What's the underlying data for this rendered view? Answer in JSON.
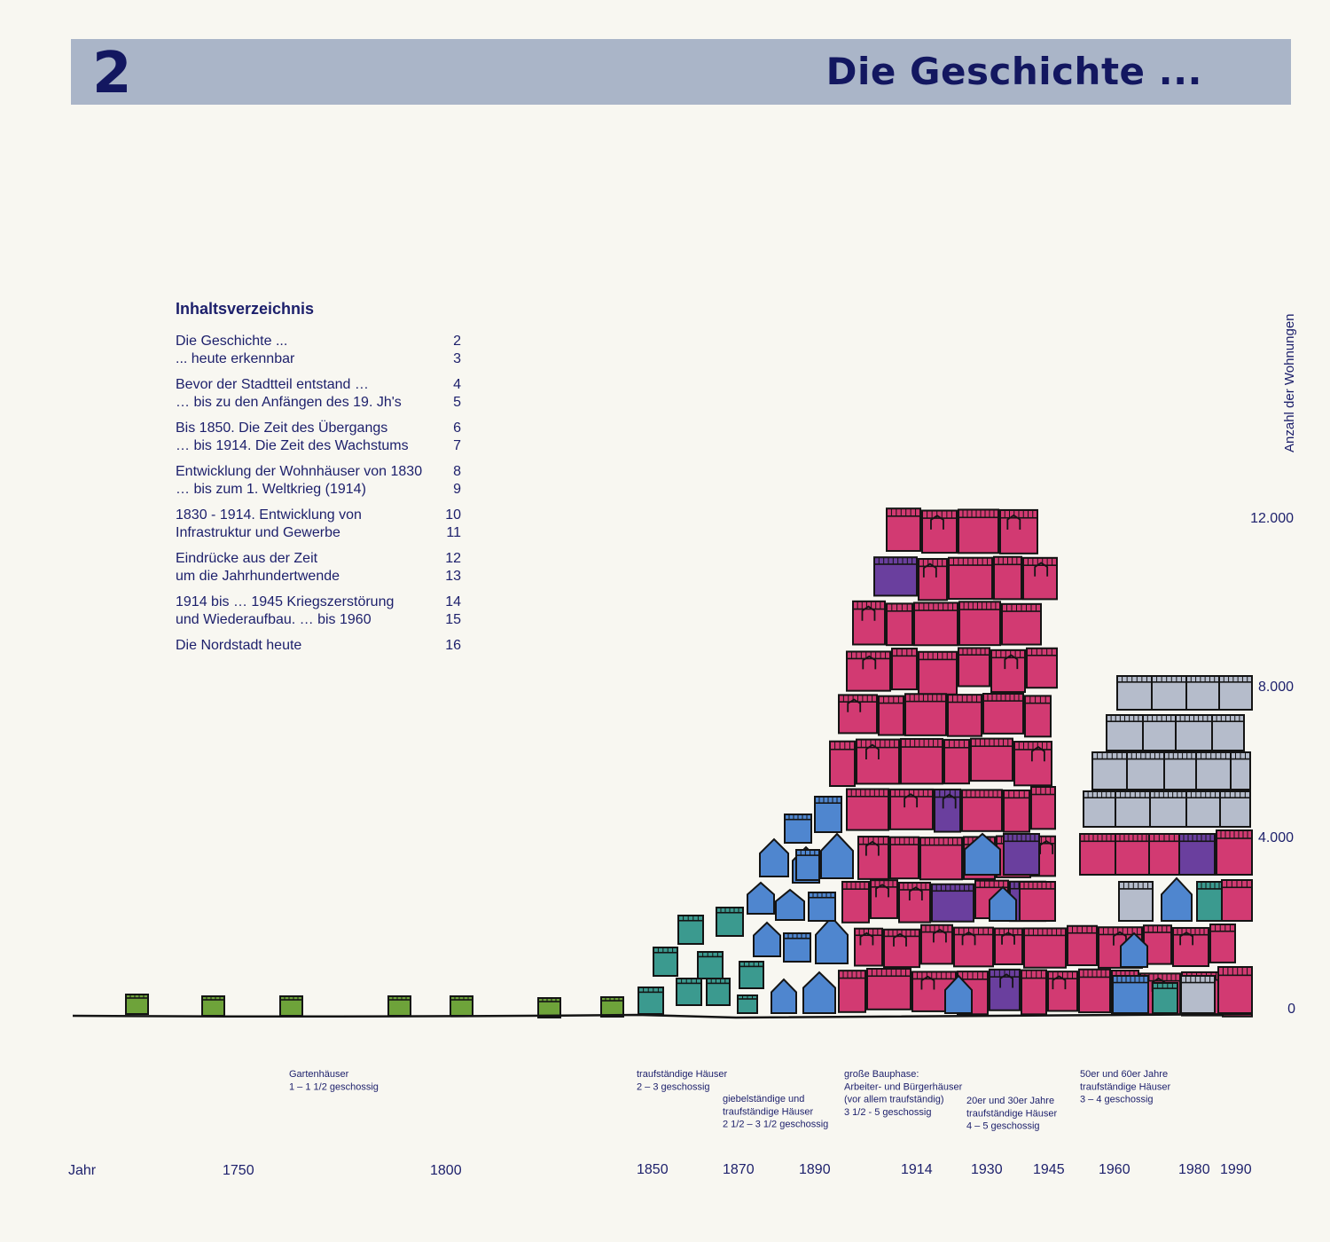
{
  "header": {
    "chapter_number": "2",
    "title": "Die Geschichte ..."
  },
  "toc": {
    "heading": "Inhaltsverzeichnis",
    "groups": [
      [
        {
          "text": "Die Geschichte ...",
          "page": "2"
        },
        {
          "text": "... heute erkennbar",
          "page": "3"
        }
      ],
      [
        {
          "text": "Bevor der Stadtteil entstand …",
          "page": "4"
        },
        {
          "text": "… bis zu den Anfängen des 19. Jh's",
          "page": "5"
        }
      ],
      [
        {
          "text": "Bis 1850. Die Zeit des Übergangs",
          "page": "6"
        },
        {
          "text": "… bis 1914. Die Zeit des Wachstums",
          "page": "7"
        }
      ],
      [
        {
          "text": "Entwicklung der Wohnhäuser von 1830",
          "page": "8"
        },
        {
          "text": "… bis zum 1. Weltkrieg (1914)",
          "page": "9"
        }
      ],
      [
        {
          "text": "1830 - 1914. Entwicklung von",
          "page": "10"
        },
        {
          "text": "Infrastruktur und Gewerbe",
          "page": "11"
        }
      ],
      [
        {
          "text": "Eindrücke aus der Zeit",
          "page": "12"
        },
        {
          "text": "um die Jahrhundertwende",
          "page": "13"
        }
      ],
      [
        {
          "text": "1914 bis … 1945 Kriegszerstörung",
          "page": "14"
        },
        {
          "text": "und Wiederaufbau. … bis 1960",
          "page": "15"
        }
      ],
      [
        {
          "text": "Die Nordstadt heute",
          "page": "16"
        }
      ]
    ]
  },
  "chart_data": {
    "type": "area",
    "ylabel": "Anzahl der Wohnungen",
    "y_ticks": [
      "12.000",
      "8.000",
      "4.000",
      "0"
    ],
    "x_label": "Jahr",
    "x_ticks": [
      "1750",
      "1800",
      "1850",
      "1870",
      "1890",
      "1914",
      "1930",
      "1945",
      "1960",
      "1980",
      "1990"
    ],
    "colors": {
      "garden": "#6ea33a",
      "teal": "#3b9a8f",
      "blue": "#4f86cf",
      "pink": "#d23a72",
      "purple": "#6a3f9e",
      "grey": "#b5bccb",
      "outline": "#141414"
    },
    "annotations": [
      {
        "lines": [
          "Gartenhäuser",
          "1 – 1 1/2 geschossig"
        ]
      },
      {
        "lines": [
          "traufständige Häuser",
          "2 – 3 geschossig"
        ]
      },
      {
        "lines": [
          "giebelständige und",
          "traufständige Häuser",
          "2 1/2 – 3 1/2 geschossig"
        ]
      },
      {
        "lines": [
          "große Bauphase:",
          "Arbeiter- und Bürgerhäuser",
          "(vor allem traufständig)",
          "3 1/2 - 5 geschossig"
        ]
      },
      {
        "lines": [
          "20er und 30er Jahre",
          "traufständige Häuser",
          "4 – 5 geschossig"
        ]
      },
      {
        "lines": [
          "50er und 60er Jahre",
          "traufständige Häuser",
          "3 – 4 geschossig"
        ]
      }
    ]
  }
}
